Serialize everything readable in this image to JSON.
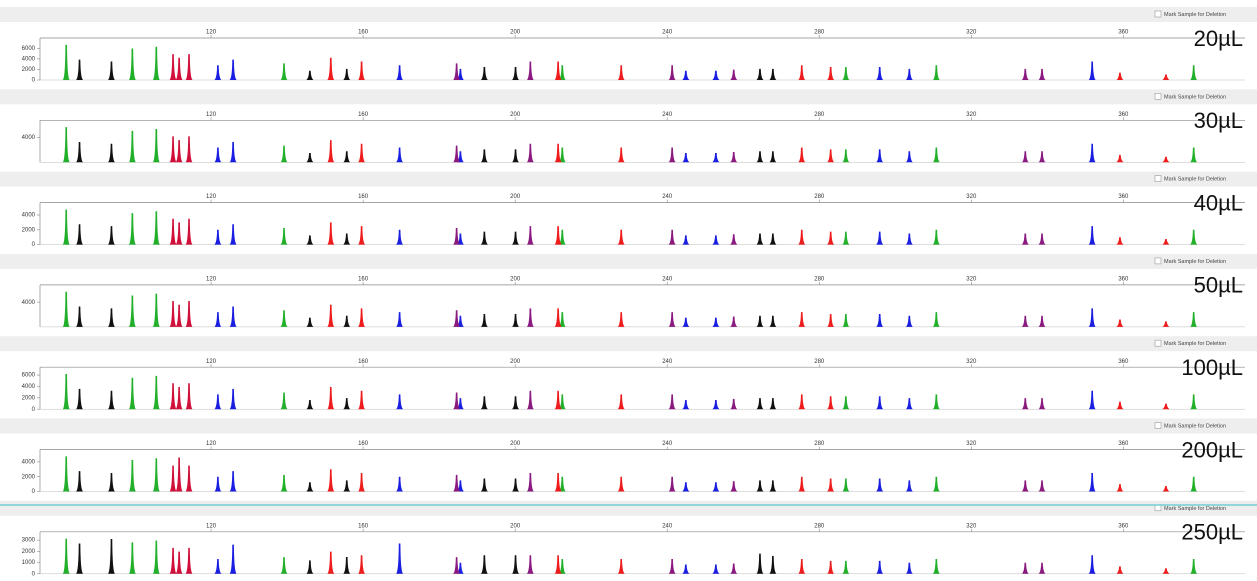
{
  "chart_data": [
    {
      "type": "electropherogram",
      "label": "20µL",
      "checkbox_label": "Mark Sample for Deletion",
      "xlim": [
        75,
        392
      ],
      "xticks": [
        120,
        160,
        200,
        240,
        280,
        320,
        360
      ],
      "ylim": [
        0,
        7000
      ],
      "yticks": [
        0,
        2000,
        4000,
        6000
      ],
      "series": [
        {
          "color": "#22b02a",
          "x": [
            81.9,
            99.3,
            105.6,
            139.2,
            212.4,
            287.0,
            310.8,
            378.5
          ],
          "values": [
            6650,
            5950,
            6300,
            3150,
            2800,
            2450,
            2800,
            2800
          ]
        },
        {
          "color": "#111111",
          "x": [
            85.4,
            93.8,
            146.0,
            155.7,
            191.9,
            200.1,
            264.4,
            267.8
          ],
          "values": [
            3850,
            3500,
            1750,
            2100,
            2450,
            2450,
            2100,
            2100
          ]
        },
        {
          "color": "#d0103a",
          "x": [
            110.0,
            111.6,
            114.2
          ],
          "values": [
            4900,
            4200,
            4900
          ]
        },
        {
          "color": "#1a1ee0",
          "x": [
            121.8,
            125.8,
            169.6,
            185.6,
            244.9,
            252.8,
            295.9,
            303.7,
            351.8
          ],
          "values": [
            2800,
            3850,
            2800,
            2100,
            1750,
            1750,
            2450,
            2100,
            3500
          ]
        },
        {
          "color": "#ee1c1c",
          "x": [
            151.5,
            159.6,
            211.3,
            227.9,
            275.4,
            283.0,
            359.1,
            371.2
          ],
          "values": [
            4200,
            3500,
            3500,
            2800,
            2800,
            2450,
            1400,
            1050
          ]
        },
        {
          "color": "#8a1a80",
          "x": [
            184.6,
            204.0,
            241.3,
            257.5,
            334.2,
            338.6
          ],
          "values": [
            3150,
            3500,
            2800,
            1960,
            2100,
            2100
          ]
        }
      ]
    },
    {
      "type": "electropherogram",
      "label": "30µL",
      "checkbox_label": "Mark Sample for Deletion",
      "xlim": [
        75,
        392
      ],
      "xticks": [
        120,
        160,
        200,
        240,
        280,
        320,
        360
      ],
      "ylim": [
        0,
        6000
      ],
      "yticks": [
        4000
      ],
      "series": [
        {
          "color": "#22b02a",
          "x": [
            81.9,
            99.3,
            105.6,
            139.2,
            212.4,
            287.0,
            310.8,
            378.5
          ],
          "values": [
            5700,
            5100,
            5400,
            2700,
            2400,
            2100,
            2400,
            2400
          ]
        },
        {
          "color": "#111111",
          "x": [
            85.4,
            93.8,
            146.0,
            155.7,
            191.9,
            200.1,
            264.4,
            267.8
          ],
          "values": [
            3300,
            3000,
            1500,
            1800,
            2100,
            2100,
            1800,
            1800
          ]
        },
        {
          "color": "#d0103a",
          "x": [
            110.0,
            111.6,
            114.2
          ],
          "values": [
            4200,
            3600,
            4200
          ]
        },
        {
          "color": "#1a1ee0",
          "x": [
            121.8,
            125.8,
            169.6,
            185.6,
            244.9,
            252.8,
            295.9,
            303.7,
            351.8
          ],
          "values": [
            2400,
            3300,
            2400,
            1800,
            1500,
            1500,
            2100,
            1800,
            3000
          ]
        },
        {
          "color": "#ee1c1c",
          "x": [
            151.5,
            159.6,
            211.3,
            227.9,
            275.4,
            283.0,
            359.1,
            371.2
          ],
          "values": [
            3600,
            3000,
            3000,
            2400,
            2400,
            2100,
            1200,
            900
          ]
        },
        {
          "color": "#8a1a80",
          "x": [
            184.6,
            204.0,
            241.3,
            257.5,
            334.2,
            338.6
          ],
          "values": [
            2700,
            3000,
            2400,
            1680,
            1800,
            1800
          ]
        }
      ]
    },
    {
      "type": "electropherogram",
      "label": "40µL",
      "checkbox_label": "Mark Sample for Deletion",
      "xlim": [
        75,
        392
      ],
      "xticks": [
        120,
        160,
        200,
        240,
        280,
        320,
        360
      ],
      "ylim": [
        0,
        5000
      ],
      "yticks": [
        0,
        2000,
        4000
      ],
      "series": [
        {
          "color": "#22b02a",
          "x": [
            81.9,
            99.3,
            105.6,
            139.2,
            212.4,
            287.0,
            310.8,
            378.5
          ],
          "values": [
            4750,
            4250,
            4500,
            2250,
            2000,
            1750,
            2000,
            2000
          ]
        },
        {
          "color": "#111111",
          "x": [
            85.4,
            93.8,
            146.0,
            155.7,
            191.9,
            200.1,
            264.4,
            267.8
          ],
          "values": [
            2750,
            2500,
            1250,
            1500,
            1750,
            1750,
            1500,
            1500
          ]
        },
        {
          "color": "#d0103a",
          "x": [
            110.0,
            111.6,
            114.2
          ],
          "values": [
            3500,
            3000,
            3500
          ]
        },
        {
          "color": "#1a1ee0",
          "x": [
            121.8,
            125.8,
            169.6,
            185.6,
            244.9,
            252.8,
            295.9,
            303.7,
            351.8
          ],
          "values": [
            2000,
            2750,
            2000,
            1500,
            1250,
            1250,
            1750,
            1500,
            2500
          ]
        },
        {
          "color": "#ee1c1c",
          "x": [
            151.5,
            159.6,
            211.3,
            227.9,
            275.4,
            283.0,
            359.1,
            371.2
          ],
          "values": [
            3000,
            2500,
            2500,
            2000,
            2000,
            1750,
            1000,
            750
          ]
        },
        {
          "color": "#8a1a80",
          "x": [
            184.6,
            204.0,
            241.3,
            257.5,
            334.2,
            338.6
          ],
          "values": [
            2250,
            2500,
            2000,
            1400,
            1500,
            1500
          ]
        }
      ]
    },
    {
      "type": "electropherogram",
      "label": "50µL",
      "checkbox_label": "Mark Sample for Deletion",
      "xlim": [
        75,
        392
      ],
      "xticks": [
        120,
        160,
        200,
        240,
        280,
        320,
        360
      ],
      "ylim": [
        0,
        6000
      ],
      "yticks": [
        4000
      ],
      "series": [
        {
          "color": "#22b02a",
          "x": [
            81.9,
            99.3,
            105.6,
            139.2,
            212.4,
            287.0,
            310.8,
            378.5
          ],
          "values": [
            5700,
            5100,
            5400,
            2700,
            2400,
            2100,
            2400,
            2400
          ]
        },
        {
          "color": "#111111",
          "x": [
            85.4,
            93.8,
            146.0,
            155.7,
            191.9,
            200.1,
            264.4,
            267.8
          ],
          "values": [
            3300,
            3000,
            1500,
            1800,
            2100,
            2100,
            1800,
            1800
          ]
        },
        {
          "color": "#d0103a",
          "x": [
            110.0,
            111.6,
            114.2
          ],
          "values": [
            4200,
            3600,
            4200
          ]
        },
        {
          "color": "#1a1ee0",
          "x": [
            121.8,
            125.8,
            169.6,
            185.6,
            244.9,
            252.8,
            295.9,
            303.7,
            351.8
          ],
          "values": [
            2400,
            3300,
            2400,
            1800,
            1500,
            1500,
            2100,
            1800,
            3000
          ]
        },
        {
          "color": "#ee1c1c",
          "x": [
            151.5,
            159.6,
            211.3,
            227.9,
            275.4,
            283.0,
            359.1,
            371.2
          ],
          "values": [
            3600,
            3000,
            3000,
            2400,
            2400,
            2100,
            1200,
            900
          ]
        },
        {
          "color": "#8a1a80",
          "x": [
            184.6,
            204.0,
            241.3,
            257.5,
            334.2,
            338.6
          ],
          "values": [
            2700,
            3000,
            2400,
            1680,
            1800,
            1800
          ]
        }
      ]
    },
    {
      "type": "electropherogram",
      "label": "100µL",
      "checkbox_label": "Mark Sample for Deletion",
      "xlim": [
        75,
        392
      ],
      "xticks": [
        120,
        160,
        200,
        240,
        280,
        320,
        360
      ],
      "ylim": [
        0,
        6500
      ],
      "yticks": [
        0,
        2000,
        4000,
        6000
      ],
      "series": [
        {
          "color": "#22b02a",
          "x": [
            81.9,
            99.3,
            105.6,
            139.2,
            212.4,
            287.0,
            310.8,
            378.5
          ],
          "values": [
            6175,
            5525,
            5850,
            2925,
            2600,
            2275,
            2600,
            2600
          ]
        },
        {
          "color": "#111111",
          "x": [
            85.4,
            93.8,
            146.0,
            155.7,
            191.9,
            200.1,
            264.4,
            267.8
          ],
          "values": [
            3575,
            3250,
            1625,
            1950,
            2275,
            2275,
            1950,
            1950
          ]
        },
        {
          "color": "#d0103a",
          "x": [
            110.0,
            111.6,
            114.2
          ],
          "values": [
            4550,
            3900,
            4550
          ]
        },
        {
          "color": "#1a1ee0",
          "x": [
            121.8,
            125.8,
            169.6,
            185.6,
            244.9,
            252.8,
            295.9,
            303.7,
            351.8
          ],
          "values": [
            2600,
            3575,
            2600,
            1950,
            1625,
            1625,
            2275,
            1950,
            3250
          ]
        },
        {
          "color": "#ee1c1c",
          "x": [
            151.5,
            159.6,
            211.3,
            227.9,
            275.4,
            283.0,
            359.1,
            371.2
          ],
          "values": [
            3900,
            3250,
            3250,
            2600,
            2600,
            2275,
            1300,
            975
          ]
        },
        {
          "color": "#8a1a80",
          "x": [
            184.6,
            204.0,
            241.3,
            257.5,
            334.2,
            338.6
          ],
          "values": [
            2925,
            3250,
            2600,
            1820,
            1950,
            1950
          ]
        }
      ]
    },
    {
      "type": "electropherogram",
      "label": "200µL",
      "checkbox_label": "Mark Sample for Deletion",
      "xlim": [
        75,
        392
      ],
      "xticks": [
        120,
        160,
        200,
        240,
        280,
        320,
        360
      ],
      "ylim": [
        0,
        5000
      ],
      "yticks": [
        0,
        2000,
        4000
      ],
      "series": [
        {
          "color": "#22b02a",
          "x": [
            81.9,
            99.3,
            105.6,
            139.2,
            212.4,
            287.0,
            310.8,
            378.5
          ],
          "values": [
            4750,
            4250,
            4500,
            2250,
            2000,
            1750,
            2000,
            2000
          ]
        },
        {
          "color": "#111111",
          "x": [
            85.4,
            93.8,
            146.0,
            155.7,
            191.9,
            200.1,
            264.4,
            267.8
          ],
          "values": [
            2750,
            2500,
            1250,
            1500,
            1750,
            1750,
            1500,
            1500
          ]
        },
        {
          "color": "#d0103a",
          "x": [
            110.0,
            111.6,
            114.2
          ],
          "values": [
            3500,
            4600,
            3500
          ]
        },
        {
          "color": "#1a1ee0",
          "x": [
            121.8,
            125.8,
            169.6,
            185.6,
            244.9,
            252.8,
            295.9,
            303.7,
            351.8
          ],
          "values": [
            2000,
            2750,
            2000,
            1500,
            1250,
            1250,
            1750,
            1500,
            2500
          ]
        },
        {
          "color": "#ee1c1c",
          "x": [
            151.5,
            159.6,
            211.3,
            227.9,
            275.4,
            283.0,
            359.1,
            371.2
          ],
          "values": [
            3000,
            2500,
            2500,
            2000,
            2000,
            1750,
            1000,
            750
          ]
        },
        {
          "color": "#8a1a80",
          "x": [
            184.6,
            204.0,
            241.3,
            257.5,
            334.2,
            338.6
          ],
          "values": [
            2250,
            2500,
            2000,
            1400,
            1500,
            1500
          ]
        }
      ]
    },
    {
      "type": "electropherogram",
      "label": "250µL",
      "checkbox_label": "Mark Sample for Deletion",
      "xlim": [
        75,
        392
      ],
      "xticks": [
        120,
        160,
        200,
        240,
        280,
        320,
        360
      ],
      "ylim": [
        0,
        3300
      ],
      "yticks": [
        0,
        1000,
        2000,
        3000
      ],
      "series": [
        {
          "color": "#22b02a",
          "x": [
            81.9,
            99.3,
            105.6,
            139.2,
            212.4,
            287.0,
            310.8,
            378.5
          ],
          "values": [
            3135,
            2805,
            2970,
            1485,
            1320,
            1155,
            1320,
            1320
          ]
        },
        {
          "color": "#111111",
          "x": [
            85.4,
            93.8,
            146.0,
            155.7,
            191.9,
            200.1,
            264.4,
            267.8
          ],
          "values": [
            2700,
            3100,
            1200,
            1500,
            1650,
            1650,
            1800,
            1600
          ]
        },
        {
          "color": "#d0103a",
          "x": [
            110.0,
            111.6,
            114.2
          ],
          "values": [
            2310,
            1980,
            2310
          ]
        },
        {
          "color": "#1a1ee0",
          "x": [
            121.8,
            125.8,
            169.6,
            185.6,
            244.9,
            252.8,
            295.9,
            303.7,
            351.8
          ],
          "values": [
            1320,
            2600,
            2700,
            990,
            825,
            825,
            1155,
            990,
            1650
          ]
        },
        {
          "color": "#ee1c1c",
          "x": [
            151.5,
            159.6,
            211.3,
            227.9,
            275.4,
            283.0,
            359.1,
            371.2
          ],
          "values": [
            1980,
            1650,
            1650,
            1320,
            1320,
            1155,
            660,
            495
          ]
        },
        {
          "color": "#8a1a80",
          "x": [
            184.6,
            204.0,
            241.3,
            257.5,
            334.2,
            338.6
          ],
          "values": [
            1485,
            1650,
            1320,
            924,
            990,
            990
          ]
        }
      ]
    }
  ]
}
